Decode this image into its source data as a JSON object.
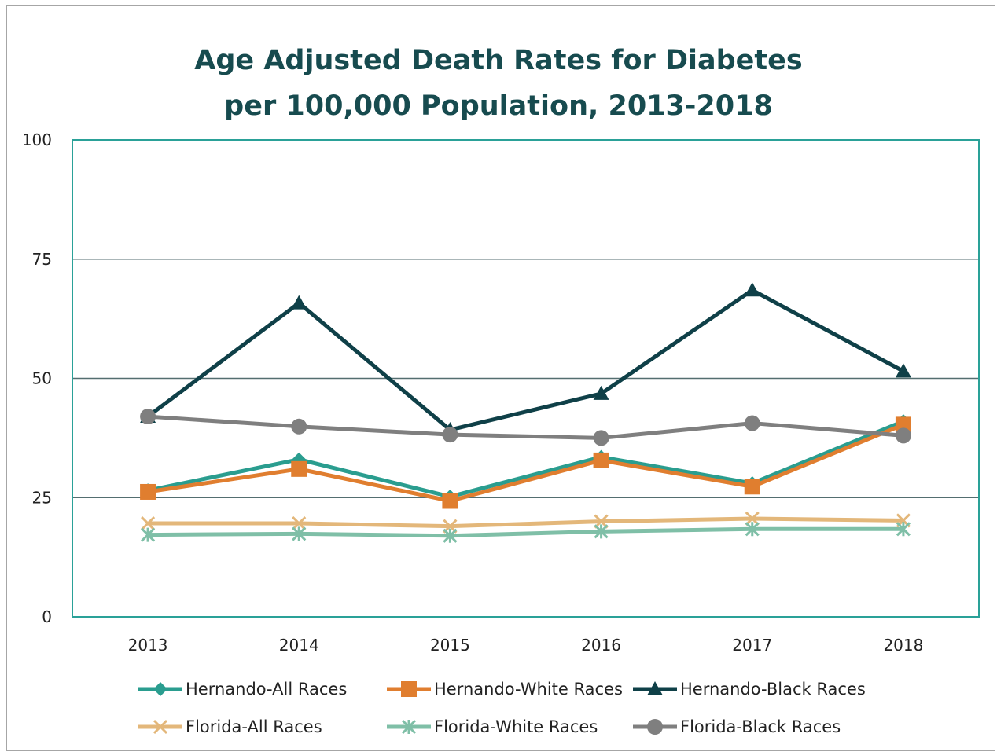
{
  "chart_data": {
    "type": "line",
    "title": [
      "Age Adjusted Death Rates for Diabetes",
      "per 100,000 Population, 2013-2018"
    ],
    "xlabel": "",
    "ylabel": "",
    "categories": [
      "2013",
      "2014",
      "2015",
      "2016",
      "2017",
      "2018"
    ],
    "ylim": [
      0,
      100
    ],
    "yticks": [
      0,
      25,
      50,
      75,
      100
    ],
    "grid": true,
    "legend_position": "bottom",
    "series": [
      {
        "name": "Hernando-All Races",
        "color": "#2a9d8f",
        "marker": "diamond",
        "values": [
          26.5,
          33.0,
          25.2,
          33.5,
          28.0,
          41.0
        ]
      },
      {
        "name": "Hernando-White Races",
        "color": "#e07e2f",
        "marker": "square",
        "values": [
          26.2,
          31.0,
          24.3,
          32.8,
          27.3,
          40.3
        ]
      },
      {
        "name": "Hernando-Black Races",
        "color": "#0f4048",
        "marker": "triangle",
        "values": [
          42.0,
          65.8,
          39.2,
          46.8,
          68.5,
          51.5
        ]
      },
      {
        "name": "Florida-All Races",
        "color": "#e3b77a",
        "marker": "x",
        "values": [
          19.6,
          19.6,
          19.0,
          20.0,
          20.6,
          20.2
        ]
      },
      {
        "name": "Florida-White Races",
        "color": "#7fbfa7",
        "marker": "asterisk",
        "values": [
          17.2,
          17.4,
          17.0,
          17.9,
          18.4,
          18.4
        ]
      },
      {
        "name": "Florida-Black Races",
        "color": "#7f7f7f",
        "marker": "circle",
        "values": [
          42.0,
          39.9,
          38.2,
          37.5,
          40.6,
          38.0
        ]
      }
    ]
  },
  "colors": {
    "plot_border": "#2aa198",
    "grid": "#546e70",
    "title": "#174b4f"
  }
}
